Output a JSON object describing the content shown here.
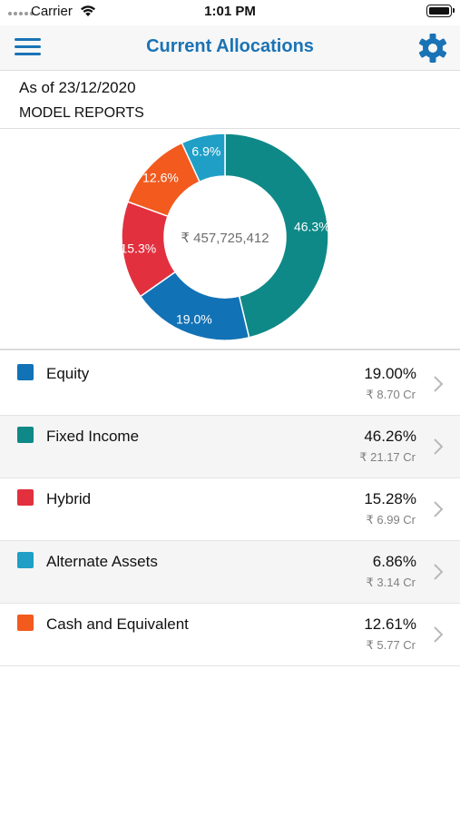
{
  "status_bar": {
    "carrier": "Carrier",
    "time": "1:01 PM",
    "icons": [
      "signal-dots-icon",
      "wifi-icon",
      "battery-icon"
    ]
  },
  "nav": {
    "title": "Current Allocations",
    "left_icon": "menu-icon",
    "right_icon": "gear-icon",
    "accent_color": "#1a73b5"
  },
  "report": {
    "as_of": "As of 23/12/2020",
    "model": "MODEL REPORTS"
  },
  "chart_data": {
    "type": "pie",
    "variant": "donut",
    "center_label": "₹ 457,725,412",
    "slices": [
      {
        "label": "Fixed Income",
        "value": 46.26,
        "display": "46.3%",
        "color": "#0e8987"
      },
      {
        "label": "Equity",
        "value": 19.0,
        "display": "19.0%",
        "color": "#1272b6"
      },
      {
        "label": "Hybrid",
        "value": 15.28,
        "display": "15.3%",
        "color": "#e2303f"
      },
      {
        "label": "Cash and Equivalent",
        "value": 12.61,
        "display": "12.6%",
        "color": "#f25a1e"
      },
      {
        "label": "Alternate Assets",
        "value": 6.86,
        "display": "6.9%",
        "color": "#1f9fc6"
      }
    ]
  },
  "allocations": [
    {
      "name": "Equity",
      "percent": "19.00%",
      "amount": "₹ 8.70 Cr",
      "color": "#1272b6"
    },
    {
      "name": "Fixed Income",
      "percent": "46.26%",
      "amount": "₹ 21.17 Cr",
      "color": "#0e8987"
    },
    {
      "name": "Hybrid",
      "percent": "15.28%",
      "amount": "₹ 6.99 Cr",
      "color": "#e2303f"
    },
    {
      "name": "Alternate Assets",
      "percent": "6.86%",
      "amount": "₹ 3.14 Cr",
      "color": "#1f9fc6"
    },
    {
      "name": "Cash and Equivalent",
      "percent": "12.61%",
      "amount": "₹ 5.77 Cr",
      "color": "#f25a1e"
    }
  ]
}
